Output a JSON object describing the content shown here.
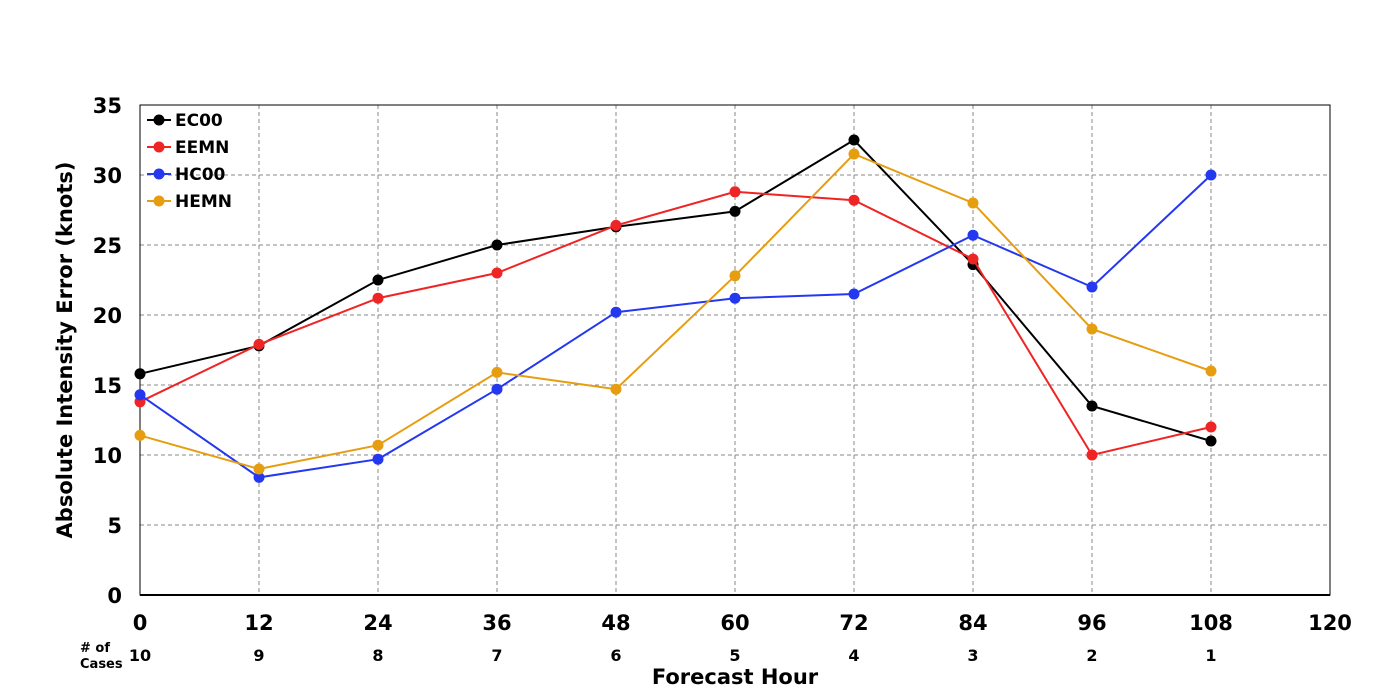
{
  "chart_data": {
    "type": "line",
    "title": "",
    "xlabel": "Forecast Hour",
    "ylabel": "Absolute Intensity Error (knots)",
    "xlim": [
      0,
      120
    ],
    "ylim": [
      0,
      35
    ],
    "x_ticks": [
      "0",
      "12",
      "24",
      "36",
      "48",
      "60",
      "72",
      "84",
      "96",
      "108",
      "120"
    ],
    "y_ticks": [
      "0",
      "5",
      "10",
      "15",
      "20",
      "25",
      "30",
      "35"
    ],
    "grid": true,
    "legend_position": "top-left",
    "cases_label": [
      "# of",
      "Cases"
    ],
    "cases": [
      {
        "x": 0,
        "n": "10"
      },
      {
        "x": 12,
        "n": "9"
      },
      {
        "x": 24,
        "n": "8"
      },
      {
        "x": 36,
        "n": "7"
      },
      {
        "x": 48,
        "n": "6"
      },
      {
        "x": 60,
        "n": "5"
      },
      {
        "x": 72,
        "n": "4"
      },
      {
        "x": 84,
        "n": "3"
      },
      {
        "x": 96,
        "n": "2"
      },
      {
        "x": 108,
        "n": "1"
      }
    ],
    "x": [
      0,
      12,
      24,
      36,
      48,
      60,
      72,
      84,
      96,
      108
    ],
    "series": [
      {
        "name": "EC00",
        "color": "#000000",
        "values": [
          15.8,
          17.8,
          22.5,
          25.0,
          26.3,
          27.4,
          32.5,
          23.6,
          13.5,
          11.0
        ]
      },
      {
        "name": "EEMN",
        "color": "#ef2424",
        "values": [
          13.8,
          17.9,
          21.2,
          23.0,
          26.4,
          28.8,
          28.2,
          24.0,
          10.0,
          12.0
        ]
      },
      {
        "name": "HC00",
        "color": "#2338ef",
        "values": [
          14.3,
          8.4,
          9.7,
          14.7,
          20.2,
          21.2,
          21.5,
          25.7,
          22.0,
          30.0
        ]
      },
      {
        "name": "HEMN",
        "color": "#e69d10",
        "values": [
          11.4,
          9.0,
          10.7,
          15.9,
          14.7,
          22.8,
          31.5,
          28.0,
          19.0,
          16.0
        ]
      }
    ]
  }
}
